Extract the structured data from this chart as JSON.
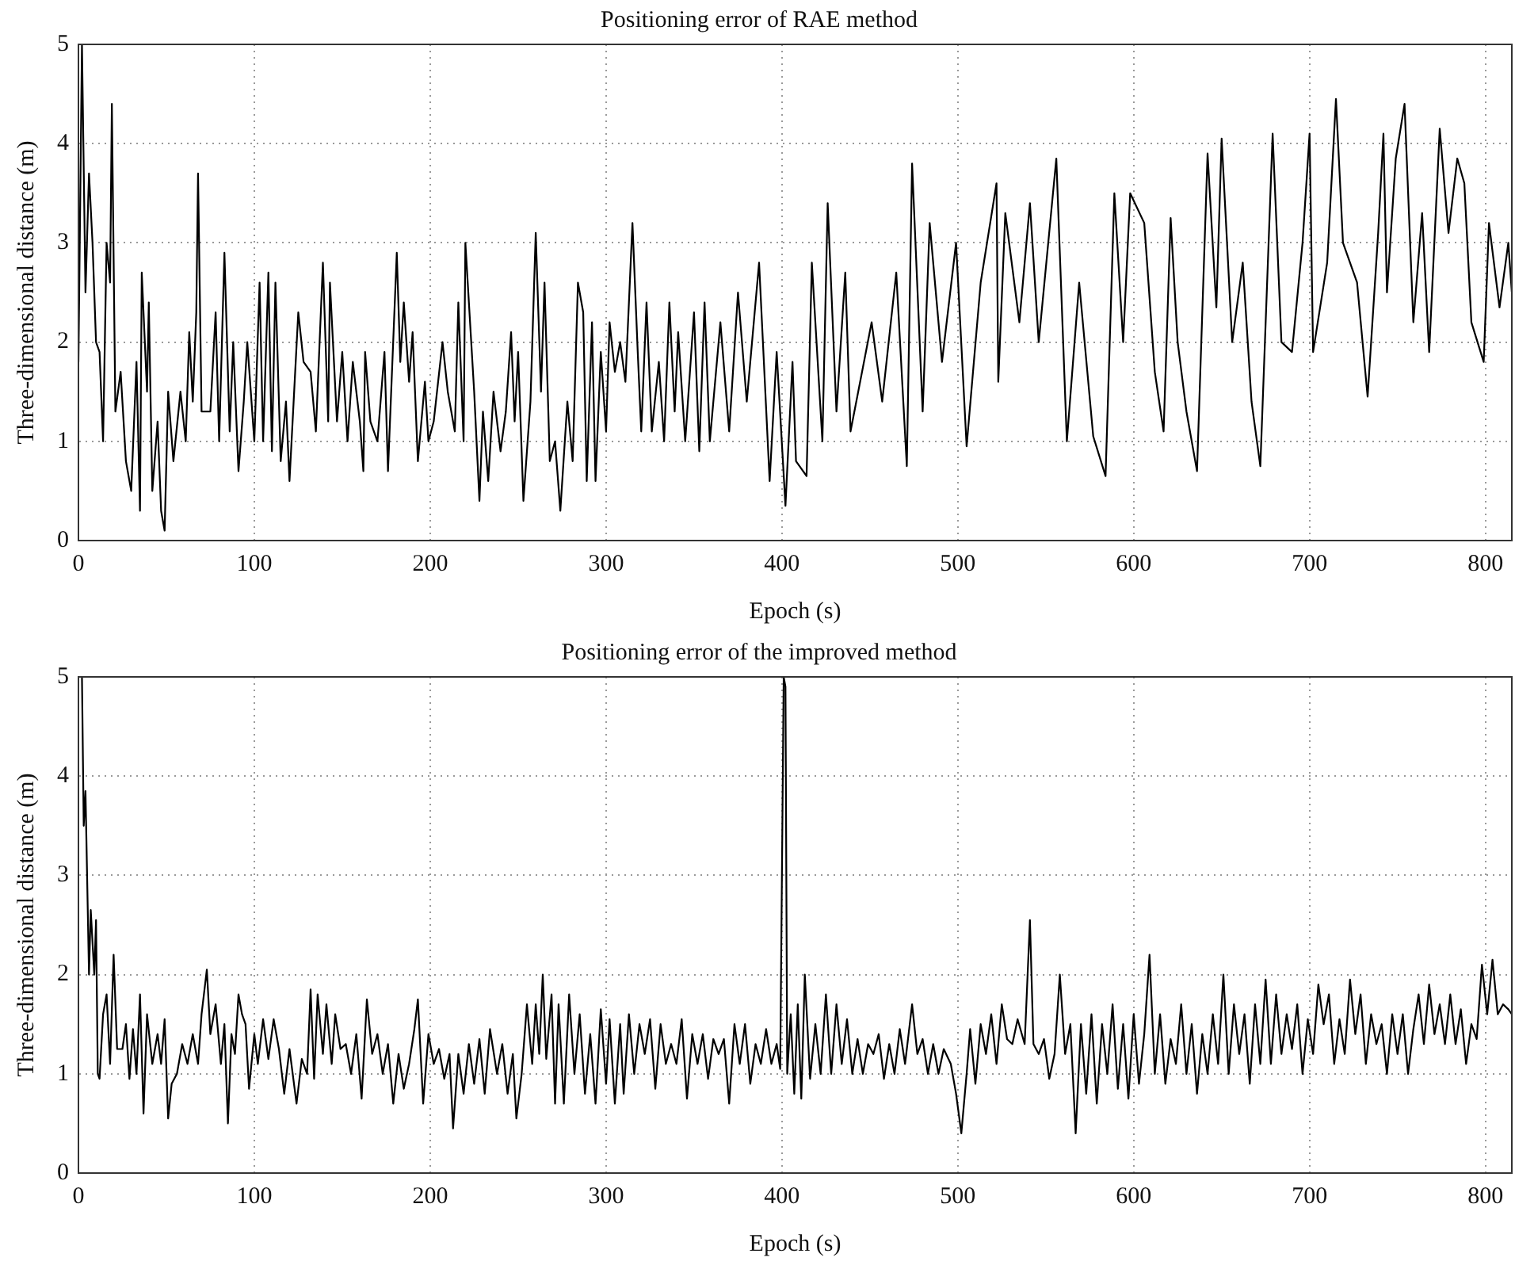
{
  "chart_data": [
    {
      "type": "line",
      "title": "Positioning error of RAE method",
      "xlabel": "Epoch (s)",
      "ylabel": "Three-dimensional distance (m)",
      "xlim": [
        0,
        815
      ],
      "xticks": [
        0,
        100,
        200,
        300,
        400,
        500,
        600,
        700,
        800
      ],
      "ylim": [
        0,
        5
      ],
      "yticks": [
        0,
        1,
        2,
        3,
        4,
        5
      ],
      "grid": true,
      "series": [
        {
          "color": "#000000",
          "x": [
            0,
            2,
            4,
            6,
            8,
            10,
            12,
            14,
            16,
            18,
            19,
            21,
            24,
            27,
            30,
            33,
            35,
            36,
            39,
            40,
            42,
            45,
            47,
            49,
            51,
            54,
            58,
            61,
            63,
            65,
            67,
            68,
            70,
            75,
            78,
            80,
            83,
            86,
            88,
            91,
            94,
            96,
            100,
            103,
            105,
            108,
            110,
            112,
            115,
            118,
            120,
            125,
            128,
            132,
            135,
            139,
            142,
            143,
            147,
            150,
            153,
            156,
            160,
            162,
            163,
            166,
            170,
            174,
            176,
            181,
            183,
            185,
            188,
            190,
            193,
            197,
            199,
            202,
            207,
            210,
            214,
            216,
            219,
            220,
            225,
            228,
            230,
            233,
            236,
            240,
            243,
            246,
            248,
            250,
            253,
            257,
            260,
            263,
            265,
            268,
            271,
            274,
            278,
            281,
            284,
            287,
            289,
            292,
            294,
            297,
            300,
            302,
            305,
            308,
            311,
            315,
            318,
            320,
            323,
            326,
            330,
            333,
            336,
            339,
            341,
            345,
            350,
            353,
            356,
            359,
            365,
            370,
            375,
            380,
            387,
            393,
            397,
            402,
            406,
            408,
            414,
            417,
            423,
            426,
            431,
            436,
            439,
            451,
            457,
            465,
            471,
            474,
            480,
            484,
            491,
            499,
            505,
            513,
            522,
            523,
            527,
            535,
            541,
            546,
            556,
            562,
            569,
            577,
            584,
            589,
            594,
            598,
            606,
            612,
            617,
            621,
            625,
            630,
            636,
            642,
            647,
            650,
            656,
            662,
            667,
            672,
            679,
            684,
            690,
            696,
            700,
            702,
            710,
            715,
            719,
            727,
            733,
            739,
            742,
            744,
            749,
            754,
            759,
            764,
            768,
            774,
            779,
            784,
            788,
            792,
            799,
            802,
            808,
            813,
            815
          ],
          "values": [
            1.8,
            5.0,
            2.5,
            3.7,
            3.0,
            2.0,
            1.9,
            1.0,
            3.0,
            2.6,
            4.4,
            1.3,
            1.7,
            0.8,
            0.5,
            1.8,
            0.3,
            2.7,
            1.5,
            2.4,
            0.5,
            1.2,
            0.3,
            0.1,
            1.5,
            0.8,
            1.5,
            1.0,
            2.1,
            1.4,
            2.3,
            3.7,
            1.3,
            1.3,
            2.3,
            1.0,
            2.9,
            1.1,
            2.0,
            0.7,
            1.4,
            2.0,
            1.0,
            2.6,
            1.0,
            2.7,
            0.9,
            2.6,
            0.8,
            1.4,
            0.6,
            2.3,
            1.8,
            1.7,
            1.1,
            2.8,
            1.2,
            2.6,
            1.2,
            1.9,
            1.0,
            1.8,
            1.2,
            0.7,
            1.9,
            1.2,
            1.0,
            1.9,
            0.7,
            2.9,
            1.8,
            2.4,
            1.6,
            2.1,
            0.8,
            1.6,
            1.0,
            1.2,
            2.0,
            1.5,
            1.1,
            2.4,
            1.0,
            3.0,
            1.5,
            0.4,
            1.3,
            0.6,
            1.5,
            0.9,
            1.3,
            2.1,
            1.2,
            1.9,
            0.4,
            1.4,
            3.1,
            1.5,
            2.6,
            0.8,
            1.0,
            0.3,
            1.4,
            0.8,
            2.6,
            2.3,
            0.6,
            2.2,
            0.6,
            1.9,
            1.1,
            2.2,
            1.7,
            2.0,
            1.6,
            3.2,
            1.9,
            1.1,
            2.4,
            1.1,
            1.8,
            1.0,
            2.4,
            1.3,
            2.1,
            1.0,
            2.3,
            0.9,
            2.4,
            1.0,
            2.2,
            1.1,
            2.5,
            1.4,
            2.8,
            0.6,
            1.9,
            0.35,
            1.8,
            0.8,
            0.65,
            2.8,
            1.0,
            3.4,
            1.3,
            2.7,
            1.1,
            2.2,
            1.4,
            2.7,
            0.75,
            3.8,
            1.3,
            3.2,
            1.8,
            3.0,
            0.95,
            2.6,
            3.6,
            1.6,
            3.3,
            2.2,
            3.4,
            2.0,
            3.85,
            1.0,
            2.6,
            1.05,
            0.65,
            3.5,
            2.0,
            3.5,
            3.2,
            1.7,
            1.1,
            3.25,
            2.0,
            1.3,
            0.7,
            3.9,
            2.35,
            4.05,
            2.0,
            2.8,
            1.4,
            0.75,
            4.1,
            2.0,
            1.9,
            3.0,
            4.1,
            1.9,
            2.8,
            4.45,
            3.0,
            2.6,
            1.45,
            3.1,
            4.1,
            2.5,
            3.85,
            4.4,
            2.2,
            3.3,
            1.9,
            4.15,
            3.1,
            3.85,
            3.6,
            2.2,
            1.8,
            3.2,
            2.35,
            3.0,
            2.5
          ]
        }
      ]
    },
    {
      "type": "line",
      "title": "Positioning error of the improved method",
      "xlabel": "Epoch (s)",
      "ylabel": "Three-dimensional distance (m)",
      "xlim": [
        0,
        815
      ],
      "xticks": [
        0,
        100,
        200,
        300,
        400,
        500,
        600,
        700,
        800
      ],
      "ylim": [
        0,
        5
      ],
      "yticks": [
        0,
        1,
        2,
        3,
        4,
        5
      ],
      "grid": true,
      "series": [
        {
          "color": "#000000",
          "x": [
            2,
            3,
            4,
            6,
            7,
            9,
            10,
            11,
            12,
            14,
            16,
            18,
            20,
            22,
            25,
            27,
            29,
            31,
            33,
            35,
            37,
            39,
            42,
            45,
            47,
            49,
            51,
            53,
            56,
            59,
            62,
            65,
            68,
            70,
            73,
            75,
            78,
            81,
            83,
            85,
            87,
            89,
            91,
            93,
            95,
            97,
            100,
            102,
            105,
            108,
            111,
            114,
            117,
            120,
            124,
            127,
            130,
            132,
            134,
            136,
            139,
            141,
            144,
            146,
            149,
            152,
            155,
            158,
            161,
            164,
            167,
            170,
            173,
            176,
            179,
            182,
            185,
            188,
            191,
            193,
            196,
            199,
            202,
            205,
            208,
            211,
            213,
            216,
            219,
            222,
            225,
            228,
            231,
            234,
            238,
            241,
            244,
            247,
            249,
            252,
            255,
            258,
            260,
            262,
            264,
            266,
            269,
            271,
            273,
            276,
            279,
            282,
            285,
            288,
            291,
            294,
            297,
            300,
            302,
            305,
            308,
            310,
            313,
            316,
            319,
            322,
            325,
            328,
            331,
            334,
            337,
            340,
            343,
            346,
            349,
            352,
            355,
            358,
            361,
            364,
            367,
            370,
            373,
            376,
            379,
            382,
            385,
            388,
            391,
            394,
            397,
            399,
            401,
            402,
            403,
            405,
            407,
            409,
            411,
            413,
            416,
            419,
            422,
            425,
            428,
            431,
            434,
            437,
            440,
            443,
            446,
            449,
            452,
            455,
            458,
            461,
            464,
            467,
            470,
            474,
            477,
            480,
            483,
            486,
            489,
            492,
            496,
            499,
            502,
            505,
            507,
            510,
            513,
            516,
            519,
            522,
            525,
            528,
            531,
            534,
            538,
            541,
            543,
            546,
            549,
            552,
            555,
            558,
            561,
            564,
            567,
            570,
            573,
            576,
            579,
            582,
            585,
            588,
            591,
            594,
            597,
            600,
            603,
            606,
            609,
            612,
            615,
            618,
            621,
            624,
            627,
            630,
            633,
            636,
            639,
            642,
            645,
            648,
            651,
            654,
            657,
            660,
            663,
            666,
            669,
            672,
            675,
            678,
            681,
            684,
            687,
            690,
            693,
            696,
            699,
            702,
            705,
            708,
            711,
            714,
            717,
            720,
            723,
            726,
            729,
            732,
            735,
            738,
            741,
            744,
            747,
            750,
            753,
            756,
            759,
            762,
            765,
            768,
            771,
            774,
            777,
            780,
            783,
            786,
            789,
            792,
            795,
            798,
            801,
            804,
            807,
            810,
            813,
            815
          ],
          "values": [
            5.0,
            3.5,
            3.85,
            2.0,
            2.65,
            2.0,
            2.55,
            1.0,
            0.95,
            1.6,
            1.8,
            1.1,
            2.2,
            1.25,
            1.25,
            1.5,
            0.95,
            1.45,
            1.0,
            1.8,
            0.6,
            1.6,
            1.1,
            1.4,
            1.1,
            1.55,
            0.55,
            0.9,
            1.0,
            1.3,
            1.1,
            1.4,
            1.1,
            1.6,
            2.05,
            1.4,
            1.7,
            1.1,
            1.5,
            0.5,
            1.4,
            1.2,
            1.8,
            1.6,
            1.5,
            0.85,
            1.4,
            1.1,
            1.55,
            1.15,
            1.55,
            1.25,
            0.8,
            1.25,
            0.7,
            1.15,
            1.0,
            1.85,
            0.95,
            1.8,
            1.2,
            1.7,
            1.1,
            1.6,
            1.25,
            1.3,
            1.0,
            1.4,
            0.75,
            1.75,
            1.2,
            1.4,
            1.0,
            1.3,
            0.7,
            1.2,
            0.85,
            1.1,
            1.45,
            1.75,
            0.7,
            1.4,
            1.1,
            1.25,
            0.95,
            1.2,
            0.45,
            1.2,
            0.8,
            1.3,
            0.9,
            1.35,
            0.8,
            1.45,
            1.0,
            1.3,
            0.8,
            1.2,
            0.55,
            1.0,
            1.7,
            1.1,
            1.7,
            1.2,
            2.0,
            1.15,
            1.8,
            0.7,
            1.7,
            0.7,
            1.8,
            1.0,
            1.6,
            0.8,
            1.4,
            0.7,
            1.65,
            0.9,
            1.55,
            0.7,
            1.5,
            0.8,
            1.6,
            1.0,
            1.5,
            1.2,
            1.55,
            0.85,
            1.5,
            1.1,
            1.3,
            1.1,
            1.55,
            0.75,
            1.4,
            1.1,
            1.4,
            0.95,
            1.35,
            1.2,
            1.35,
            0.7,
            1.5,
            1.1,
            1.5,
            0.9,
            1.3,
            1.1,
            1.45,
            1.1,
            1.3,
            1.05,
            5.0,
            4.9,
            1.0,
            1.6,
            0.8,
            1.7,
            0.75,
            2.0,
            0.95,
            1.5,
            1.0,
            1.8,
            1.0,
            1.7,
            1.1,
            1.55,
            1.0,
            1.35,
            1.0,
            1.3,
            1.2,
            1.4,
            0.95,
            1.3,
            1.0,
            1.45,
            1.1,
            1.7,
            1.2,
            1.35,
            1.0,
            1.3,
            1.0,
            1.25,
            1.1,
            0.8,
            0.4,
            1.0,
            1.45,
            0.9,
            1.5,
            1.2,
            1.6,
            1.1,
            1.7,
            1.35,
            1.3,
            1.55,
            1.3,
            2.55,
            1.3,
            1.2,
            1.35,
            0.95,
            1.2,
            2.0,
            1.2,
            1.5,
            0.4,
            1.5,
            0.8,
            1.6,
            0.7,
            1.5,
            1.0,
            1.7,
            0.85,
            1.5,
            0.75,
            1.6,
            0.9,
            1.4,
            2.2,
            1.0,
            1.6,
            0.9,
            1.35,
            1.1,
            1.7,
            1.0,
            1.5,
            0.8,
            1.4,
            1.0,
            1.6,
            1.1,
            2.0,
            1.0,
            1.7,
            1.2,
            1.6,
            0.9,
            1.7,
            1.1,
            1.95,
            1.1,
            1.8,
            1.2,
            1.6,
            1.25,
            1.7,
            1.0,
            1.55,
            1.2,
            1.9,
            1.5,
            1.8,
            1.1,
            1.55,
            1.2,
            1.95,
            1.4,
            1.8,
            1.1,
            1.6,
            1.3,
            1.5,
            1.0,
            1.6,
            1.2,
            1.6,
            1.0,
            1.45,
            1.8,
            1.3,
            1.9,
            1.4,
            1.7,
            1.3,
            1.8,
            1.3,
            1.65,
            1.1,
            1.5,
            1.35,
            2.1,
            1.6,
            2.15,
            1.6,
            1.7,
            1.65,
            1.6
          ]
        }
      ]
    }
  ]
}
